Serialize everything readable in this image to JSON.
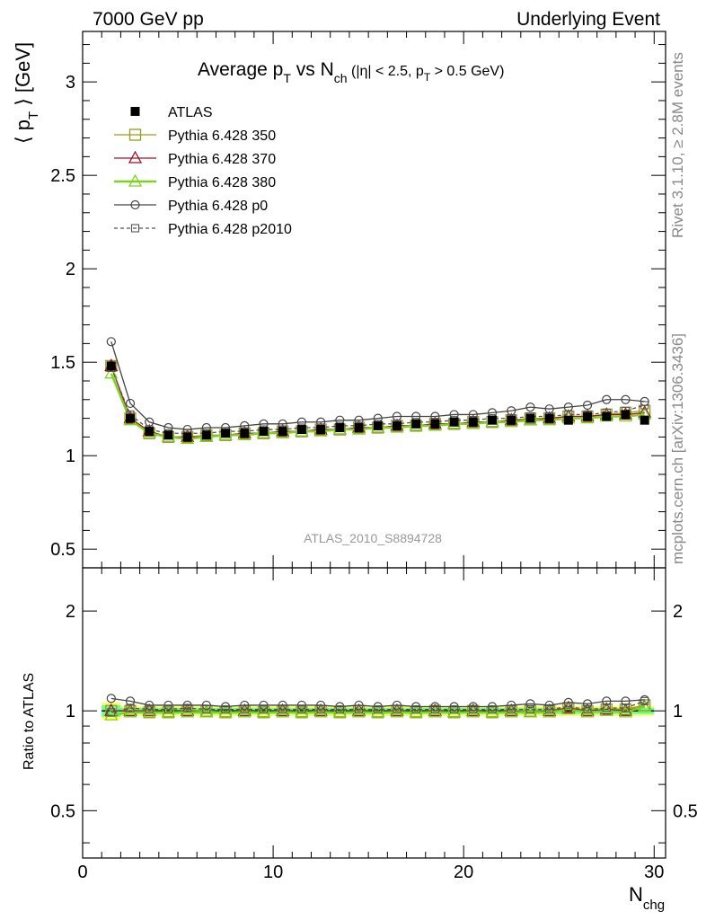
{
  "header": {
    "left": "7000 GeV pp",
    "right": "Underlying Event"
  },
  "side_labels": {
    "rivet": "Rivet 3.1.10, ≥ 2.8M events",
    "mcplots": "mcplots.cern.ch [arXiv:1306.3436]"
  },
  "chart_data": [
    {
      "type": "scatter",
      "panel": "main",
      "title_main": "Average p",
      "title_sub_T": "T",
      "title_vs": " vs N",
      "title_sub_ch": "ch",
      "title_cuts_a": " (|η| < 2.5, p",
      "title_cuts_sub": "T",
      "title_cuts_b": " > 0.5 GeV)",
      "ylabel_a": "⟨ p",
      "ylabel_sub": "T",
      "ylabel_b": " ⟩ [GeV]",
      "xlabel_main": "N",
      "xlabel_sub": "chg",
      "analysis_label": "ATLAS_2010_S8894728",
      "xlim": [
        0,
        30.6
      ],
      "ylim": [
        0.4,
        3.27
      ],
      "y_ticks": [
        0.5,
        1,
        1.5,
        2,
        2.5,
        3
      ],
      "y_tick_labels": [
        "0.5",
        "1",
        "1.5",
        "2",
        "2.5",
        "3"
      ],
      "x_ticks": [
        0,
        10,
        20,
        30
      ],
      "x_tick_labels": [
        "0",
        "10",
        "20",
        "30"
      ],
      "legend_position": "top-left",
      "x": [
        1.5,
        2.5,
        3.5,
        4.5,
        5.5,
        6.5,
        7.5,
        8.5,
        9.5,
        10.5,
        11.5,
        12.5,
        13.5,
        14.5,
        15.5,
        16.5,
        17.5,
        18.5,
        19.5,
        20.5,
        21.5,
        22.5,
        23.5,
        24.5,
        25.5,
        26.5,
        27.5,
        28.5,
        29.5
      ],
      "series": [
        {
          "name": "ATLAS",
          "color": "#000000",
          "marker": "filled-square",
          "line": "none",
          "values": [
            1.48,
            1.2,
            1.13,
            1.11,
            1.1,
            1.11,
            1.12,
            1.12,
            1.13,
            1.13,
            1.14,
            1.14,
            1.15,
            1.15,
            1.16,
            1.16,
            1.17,
            1.17,
            1.18,
            1.18,
            1.19,
            1.19,
            1.2,
            1.2,
            1.19,
            1.21,
            1.21,
            1.22,
            1.19
          ]
        },
        {
          "name": "Pythia 6.428 350",
          "color": "#9a9a1e",
          "marker": "open-square",
          "line": "solid",
          "values": [
            1.48,
            1.2,
            1.12,
            1.1,
            1.1,
            1.11,
            1.11,
            1.12,
            1.12,
            1.13,
            1.13,
            1.14,
            1.14,
            1.15,
            1.15,
            1.16,
            1.16,
            1.17,
            1.17,
            1.18,
            1.18,
            1.19,
            1.2,
            1.2,
            1.21,
            1.21,
            1.22,
            1.23,
            1.24
          ]
        },
        {
          "name": "Pythia 6.428 370",
          "color": "#a0102a",
          "marker": "open-triangle",
          "line": "solid",
          "values": [
            1.48,
            1.2,
            1.13,
            1.1,
            1.1,
            1.1,
            1.11,
            1.12,
            1.12,
            1.13,
            1.13,
            1.14,
            1.14,
            1.15,
            1.15,
            1.16,
            1.16,
            1.17,
            1.17,
            1.18,
            1.18,
            1.19,
            1.19,
            1.2,
            1.21,
            1.21,
            1.22,
            1.22,
            1.23
          ]
        },
        {
          "name": "Pythia 6.428 380",
          "color": "#7ed321",
          "marker": "open-triangle",
          "line": "solid-thick",
          "values": [
            1.44,
            1.19,
            1.12,
            1.1,
            1.09,
            1.1,
            1.11,
            1.11,
            1.12,
            1.12,
            1.13,
            1.13,
            1.14,
            1.14,
            1.15,
            1.15,
            1.16,
            1.16,
            1.17,
            1.17,
            1.18,
            1.18,
            1.19,
            1.19,
            1.2,
            1.2,
            1.21,
            1.21,
            1.22
          ]
        },
        {
          "name": "Pythia 6.428 p0",
          "color": "#444444",
          "marker": "open-circle",
          "line": "solid",
          "values": [
            1.61,
            1.28,
            1.18,
            1.15,
            1.14,
            1.15,
            1.15,
            1.16,
            1.17,
            1.17,
            1.18,
            1.18,
            1.19,
            1.19,
            1.2,
            1.21,
            1.21,
            1.21,
            1.22,
            1.22,
            1.23,
            1.24,
            1.26,
            1.25,
            1.26,
            1.27,
            1.3,
            1.3,
            1.29
          ]
        },
        {
          "name": "Pythia 6.428 p2010",
          "color": "#555555",
          "marker": "open-square-small",
          "line": "dashed",
          "values": [
            1.47,
            1.22,
            1.14,
            1.12,
            1.12,
            1.12,
            1.13,
            1.13,
            1.14,
            1.14,
            1.15,
            1.15,
            1.16,
            1.16,
            1.17,
            1.17,
            1.18,
            1.18,
            1.19,
            1.19,
            1.2,
            1.2,
            1.21,
            1.21,
            1.22,
            1.22,
            1.23,
            1.24,
            1.27
          ]
        }
      ]
    },
    {
      "type": "scatter",
      "panel": "ratio",
      "ylabel": "Ratio to ATLAS",
      "xlim": [
        0,
        30.6
      ],
      "ylim_log": [
        0.36,
        2.7
      ],
      "y_scale": "log",
      "y_ticks": [
        0.5,
        1,
        2
      ],
      "y_tick_labels": [
        "0.5",
        "1",
        "2"
      ],
      "reference_line": 1,
      "band_colors": [
        "#ffff66",
        "#66ff99"
      ],
      "series": [
        {
          "name": "Pythia 6.428 350",
          "values": [
            1.0,
            1.0,
            0.99,
            0.99,
            1.0,
            1.0,
            0.99,
            1.0,
            0.99,
            1.0,
            0.99,
            1.0,
            0.99,
            1.0,
            0.99,
            1.0,
            0.99,
            1.0,
            0.99,
            1.0,
            0.99,
            1.0,
            1.0,
            1.0,
            1.02,
            1.0,
            1.01,
            1.01,
            1.04
          ]
        },
        {
          "name": "Pythia 6.428 370",
          "values": [
            1.0,
            1.0,
            1.0,
            0.99,
            1.0,
            0.99,
            0.99,
            1.0,
            0.99,
            1.0,
            0.99,
            1.0,
            0.99,
            1.0,
            0.99,
            1.0,
            0.99,
            1.0,
            0.99,
            1.0,
            0.99,
            1.0,
            0.99,
            1.0,
            1.02,
            1.0,
            1.01,
            1.0,
            1.03
          ]
        },
        {
          "name": "Pythia 6.428 380",
          "values": [
            0.97,
            0.99,
            0.99,
            0.99,
            0.99,
            0.99,
            0.99,
            0.99,
            0.99,
            0.99,
            0.99,
            0.99,
            0.99,
            0.99,
            0.99,
            0.99,
            0.99,
            0.99,
            0.99,
            0.99,
            0.99,
            0.99,
            0.99,
            0.99,
            1.01,
            0.99,
            1.0,
            0.99,
            1.03
          ]
        },
        {
          "name": "Pythia 6.428 p0",
          "values": [
            1.09,
            1.07,
            1.04,
            1.04,
            1.04,
            1.04,
            1.03,
            1.04,
            1.04,
            1.04,
            1.04,
            1.04,
            1.03,
            1.04,
            1.03,
            1.04,
            1.03,
            1.03,
            1.03,
            1.03,
            1.03,
            1.04,
            1.05,
            1.04,
            1.06,
            1.05,
            1.07,
            1.07,
            1.08
          ]
        },
        {
          "name": "Pythia 6.428 p2010",
          "values": [
            0.99,
            1.02,
            1.01,
            1.01,
            1.02,
            1.01,
            1.01,
            1.01,
            1.01,
            1.01,
            1.01,
            1.01,
            1.01,
            1.01,
            1.01,
            1.01,
            1.01,
            1.01,
            1.01,
            1.01,
            1.01,
            1.01,
            1.01,
            1.01,
            1.03,
            1.01,
            1.02,
            1.02,
            1.07
          ]
        }
      ]
    }
  ]
}
